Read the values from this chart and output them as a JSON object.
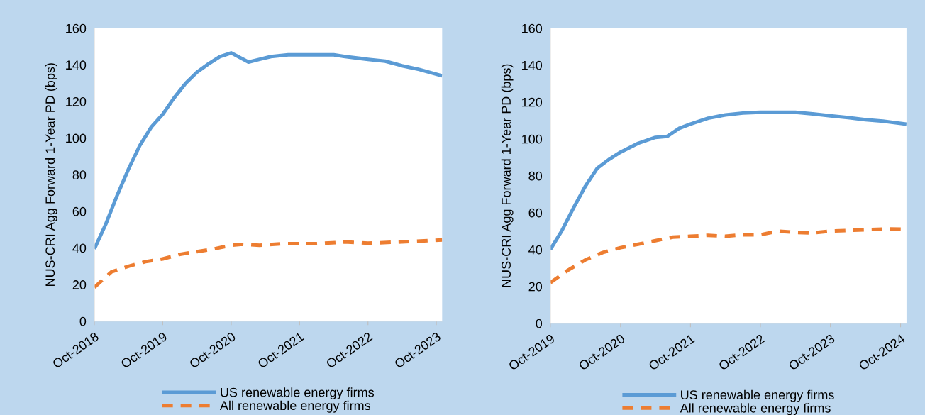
{
  "chart_data": [
    {
      "type": "line",
      "ylabel": "NUS-CRI Agg Forward 1-Year PD (bps)",
      "xlim": [
        "2018-10",
        "2023-11"
      ],
      "ylim": [
        0,
        160
      ],
      "yticks": [
        0,
        20,
        40,
        60,
        80,
        100,
        120,
        140,
        160
      ],
      "xticks": [
        {
          "value": "2018-10",
          "label": "Oct-2018"
        },
        {
          "value": "2019-10",
          "label": "Oct-2019"
        },
        {
          "value": "2020-10",
          "label": "Oct-2020"
        },
        {
          "value": "2021-10",
          "label": "Oct-2021"
        },
        {
          "value": "2022-10",
          "label": "Oct-2022"
        },
        {
          "value": "2023-10",
          "label": "Oct-2023"
        }
      ],
      "grid": false,
      "legend": "bottom",
      "series": [
        {
          "name": "US renewable energy firms",
          "color": "#5b9bd5",
          "line_style": "solid",
          "x": [
            "2018-10",
            "2018-12",
            "2019-02",
            "2019-04",
            "2019-06",
            "2019-08",
            "2019-10",
            "2019-12",
            "2020-02",
            "2020-04",
            "2020-06",
            "2020-08",
            "2020-10",
            "2021-01",
            "2021-03",
            "2021-05",
            "2021-08",
            "2022-04",
            "2022-06",
            "2022-10",
            "2023-01",
            "2023-04",
            "2023-07",
            "2023-11"
          ],
          "values": [
            39.5,
            53,
            69,
            83,
            96,
            106,
            113,
            122,
            130,
            136,
            140.5,
            144.5,
            146.5,
            141.5,
            143,
            144.5,
            145.5,
            145.5,
            144.5,
            143,
            142,
            139.5,
            137.5,
            134
          ]
        },
        {
          "name": "All renewable energy firms",
          "color": "#ed7d31",
          "line_style": "dashed",
          "x": [
            "2018-10",
            "2019-01",
            "2019-04",
            "2019-07",
            "2019-10",
            "2020-01",
            "2020-04",
            "2020-07",
            "2020-10",
            "2020-12",
            "2021-03",
            "2021-07",
            "2022-01",
            "2022-06",
            "2022-10",
            "2023-04",
            "2023-11"
          ],
          "values": [
            18.5,
            27,
            30,
            32.5,
            34,
            36.5,
            38,
            39.5,
            41.5,
            42,
            41.5,
            42.3,
            42.3,
            43.3,
            42.6,
            43.3,
            44.4
          ]
        }
      ]
    },
    {
      "type": "line",
      "ylabel": "NUS-CRI Agg Forward 1-Year PD (bps)",
      "xlim": [
        "2019-10",
        "2024-11"
      ],
      "ylim": [
        0,
        160
      ],
      "yticks": [
        0,
        20,
        40,
        60,
        80,
        100,
        120,
        140,
        160
      ],
      "xticks": [
        {
          "value": "2019-10",
          "label": "Oct-2019"
        },
        {
          "value": "2020-10",
          "label": "Oct-2020"
        },
        {
          "value": "2021-10",
          "label": "Oct-2021"
        },
        {
          "value": "2022-10",
          "label": "Oct-2022"
        },
        {
          "value": "2023-10",
          "label": "Oct-2023"
        },
        {
          "value": "2024-10",
          "label": "Oct-2024"
        }
      ],
      "grid": false,
      "legend": "bottom",
      "series": [
        {
          "name": "US renewable energy firms",
          "color": "#5b9bd5",
          "line_style": "solid",
          "x": [
            "2019-10",
            "2019-12",
            "2020-02",
            "2020-04",
            "2020-06",
            "2020-08",
            "2020-10",
            "2021-01",
            "2021-04",
            "2021-06",
            "2021-08",
            "2021-10",
            "2022-01",
            "2022-04",
            "2022-07",
            "2022-10",
            "2023-04",
            "2023-07",
            "2023-10",
            "2024-01",
            "2024-04",
            "2024-07",
            "2024-11"
          ],
          "values": [
            40,
            50.4,
            63,
            74.4,
            84,
            88.8,
            92.8,
            97.6,
            100.8,
            101.3,
            105.6,
            108,
            111.2,
            113,
            114,
            114.4,
            114.4,
            113.6,
            112.5,
            111.5,
            110.4,
            109.6,
            108
          ]
        },
        {
          "name": "All renewable energy firms",
          "color": "#ed7d31",
          "line_style": "dashed",
          "x": [
            "2019-10",
            "2020-01",
            "2020-04",
            "2020-07",
            "2020-10",
            "2021-01",
            "2021-04",
            "2021-07",
            "2021-10",
            "2022-01",
            "2022-04",
            "2022-07",
            "2022-10",
            "2023-01",
            "2023-04",
            "2023-07",
            "2023-10",
            "2024-04",
            "2024-08",
            "2024-11"
          ],
          "values": [
            22,
            28.8,
            34.4,
            38.4,
            41,
            42.9,
            44.8,
            46.7,
            47.2,
            47.7,
            47.2,
            48,
            48,
            50,
            49.3,
            49,
            50,
            50.7,
            51.2,
            51
          ]
        }
      ]
    }
  ]
}
